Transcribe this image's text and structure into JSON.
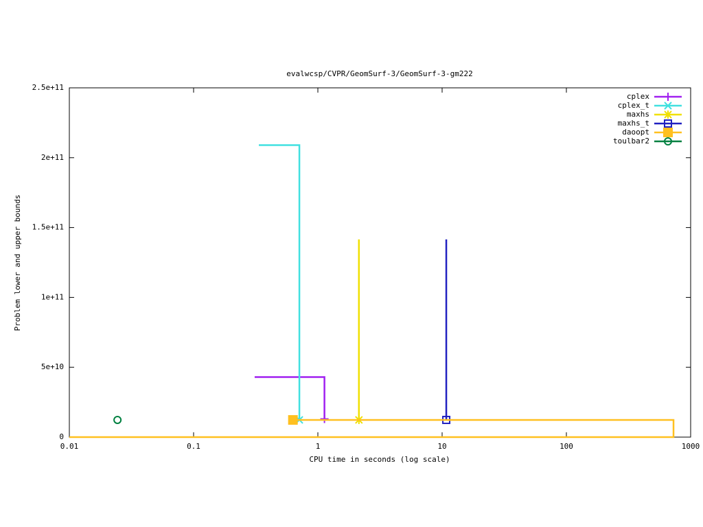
{
  "chart_data": {
    "type": "line",
    "title": "evalwcsp/CVPR/GeomSurf-3/GeomSurf-3-gm222",
    "x_label": "CPU time in seconds (log scale)",
    "y_label": "Problem lower and upper bounds",
    "x_log": true,
    "xlim": [
      0.01,
      1000
    ],
    "xticks": [
      0.01,
      0.1,
      1,
      10,
      100,
      1000
    ],
    "ylim": [
      0,
      250000000000
    ],
    "yticks": [
      0,
      {
        "value": 50000000000,
        "label": "5e+10"
      },
      {
        "value": 100000000000,
        "label": "1e+11"
      },
      {
        "value": 150000000000,
        "label": "1.5e+11"
      },
      {
        "value": 200000000000,
        "label": "2e+11"
      },
      {
        "value": 250000000000,
        "label": "2.5e+11"
      }
    ],
    "legend": "top-right",
    "series": [
      {
        "name": "cplex",
        "color": "#a020f0",
        "marker": "plus",
        "x": [
          0.31,
          1.13,
          1.13
        ],
        "values": [
          43000000000,
          43000000000,
          13000000000
        ]
      },
      {
        "name": "cplex_t",
        "color": "#40e0e0",
        "marker": "cross",
        "x": [
          0.335,
          0.71,
          0.71
        ],
        "values": [
          209000000000,
          209000000000,
          12300000000
        ]
      },
      {
        "name": "maxhs",
        "color": "#f0e000",
        "marker": "star",
        "x": [
          2.14,
          2.14
        ],
        "values": [
          141500000000,
          12300000000
        ]
      },
      {
        "name": "maxhs_t",
        "color": "#2020c0",
        "marker": "square-open",
        "x": [
          10.8,
          10.8
        ],
        "values": [
          141500000000,
          12300000000
        ]
      },
      {
        "name": "daoopt",
        "color": "#ffc020",
        "marker": "square",
        "x": [
          0.01,
          728,
          728,
          0.63
        ],
        "values": [
          0,
          0,
          12300000000,
          12300000000
        ]
      },
      {
        "name": "toulbar2",
        "color": "#008040",
        "marker": "circle",
        "x": [
          0.0244
        ],
        "values": [
          12300000000
        ]
      }
    ]
  }
}
